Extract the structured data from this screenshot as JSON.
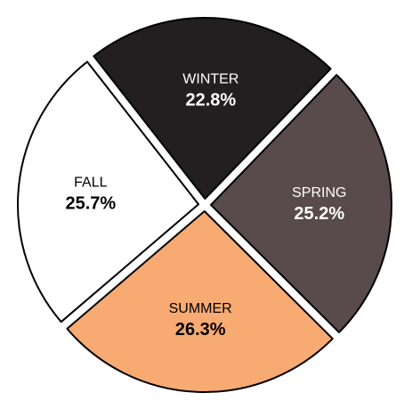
{
  "chart_data": {
    "type": "pie",
    "categories": [
      "WINTER",
      "SPRING",
      "SUMMER",
      "FALL"
    ],
    "values": [
      22.8,
      25.2,
      26.3,
      25.7
    ],
    "value_labels": [
      "22.8%",
      "25.2%",
      "26.3%",
      "25.7%"
    ],
    "colors": [
      "#231f20",
      "#594a4b",
      "#f7aa72",
      "#ffffff"
    ],
    "label_colors": [
      "#ffffff",
      "#ffffff",
      "#000000",
      "#000000"
    ]
  }
}
